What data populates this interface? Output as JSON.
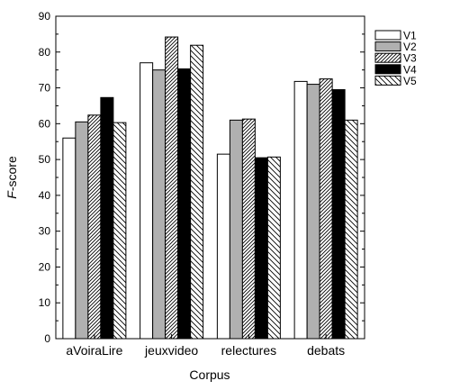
{
  "chart_data": {
    "type": "bar",
    "title": "",
    "xlabel": "Corpus",
    "ylabel_italic": "F",
    "ylabel_rest": "-score",
    "ylim": [
      0,
      90
    ],
    "yticks": [
      "0",
      "10",
      "20",
      "30",
      "40",
      "50",
      "60",
      "70",
      "80",
      "90"
    ],
    "categories": [
      "aVoiraLire",
      "jeuxvideo",
      "relectures",
      "debats"
    ],
    "series": [
      {
        "name": "V1",
        "values": [
          56.0,
          77.0,
          51.5,
          71.8
        ],
        "color": "#ffffff",
        "pattern": "none"
      },
      {
        "name": "V2",
        "values": [
          60.5,
          75.0,
          61.0,
          71.0
        ],
        "color": "#b0b0b0",
        "pattern": "none"
      },
      {
        "name": "V3",
        "values": [
          62.4,
          84.2,
          61.3,
          72.5
        ],
        "color": "#ffffff",
        "pattern": "dense-diagonal"
      },
      {
        "name": "V4",
        "values": [
          67.3,
          75.3,
          50.5,
          69.5
        ],
        "color": "#000000",
        "pattern": "none"
      },
      {
        "name": "V5",
        "values": [
          60.3,
          81.9,
          50.7,
          61.0
        ],
        "color": "#ffffff",
        "pattern": "sparse-backslash"
      }
    ],
    "legend_position": "right",
    "grid": false
  }
}
